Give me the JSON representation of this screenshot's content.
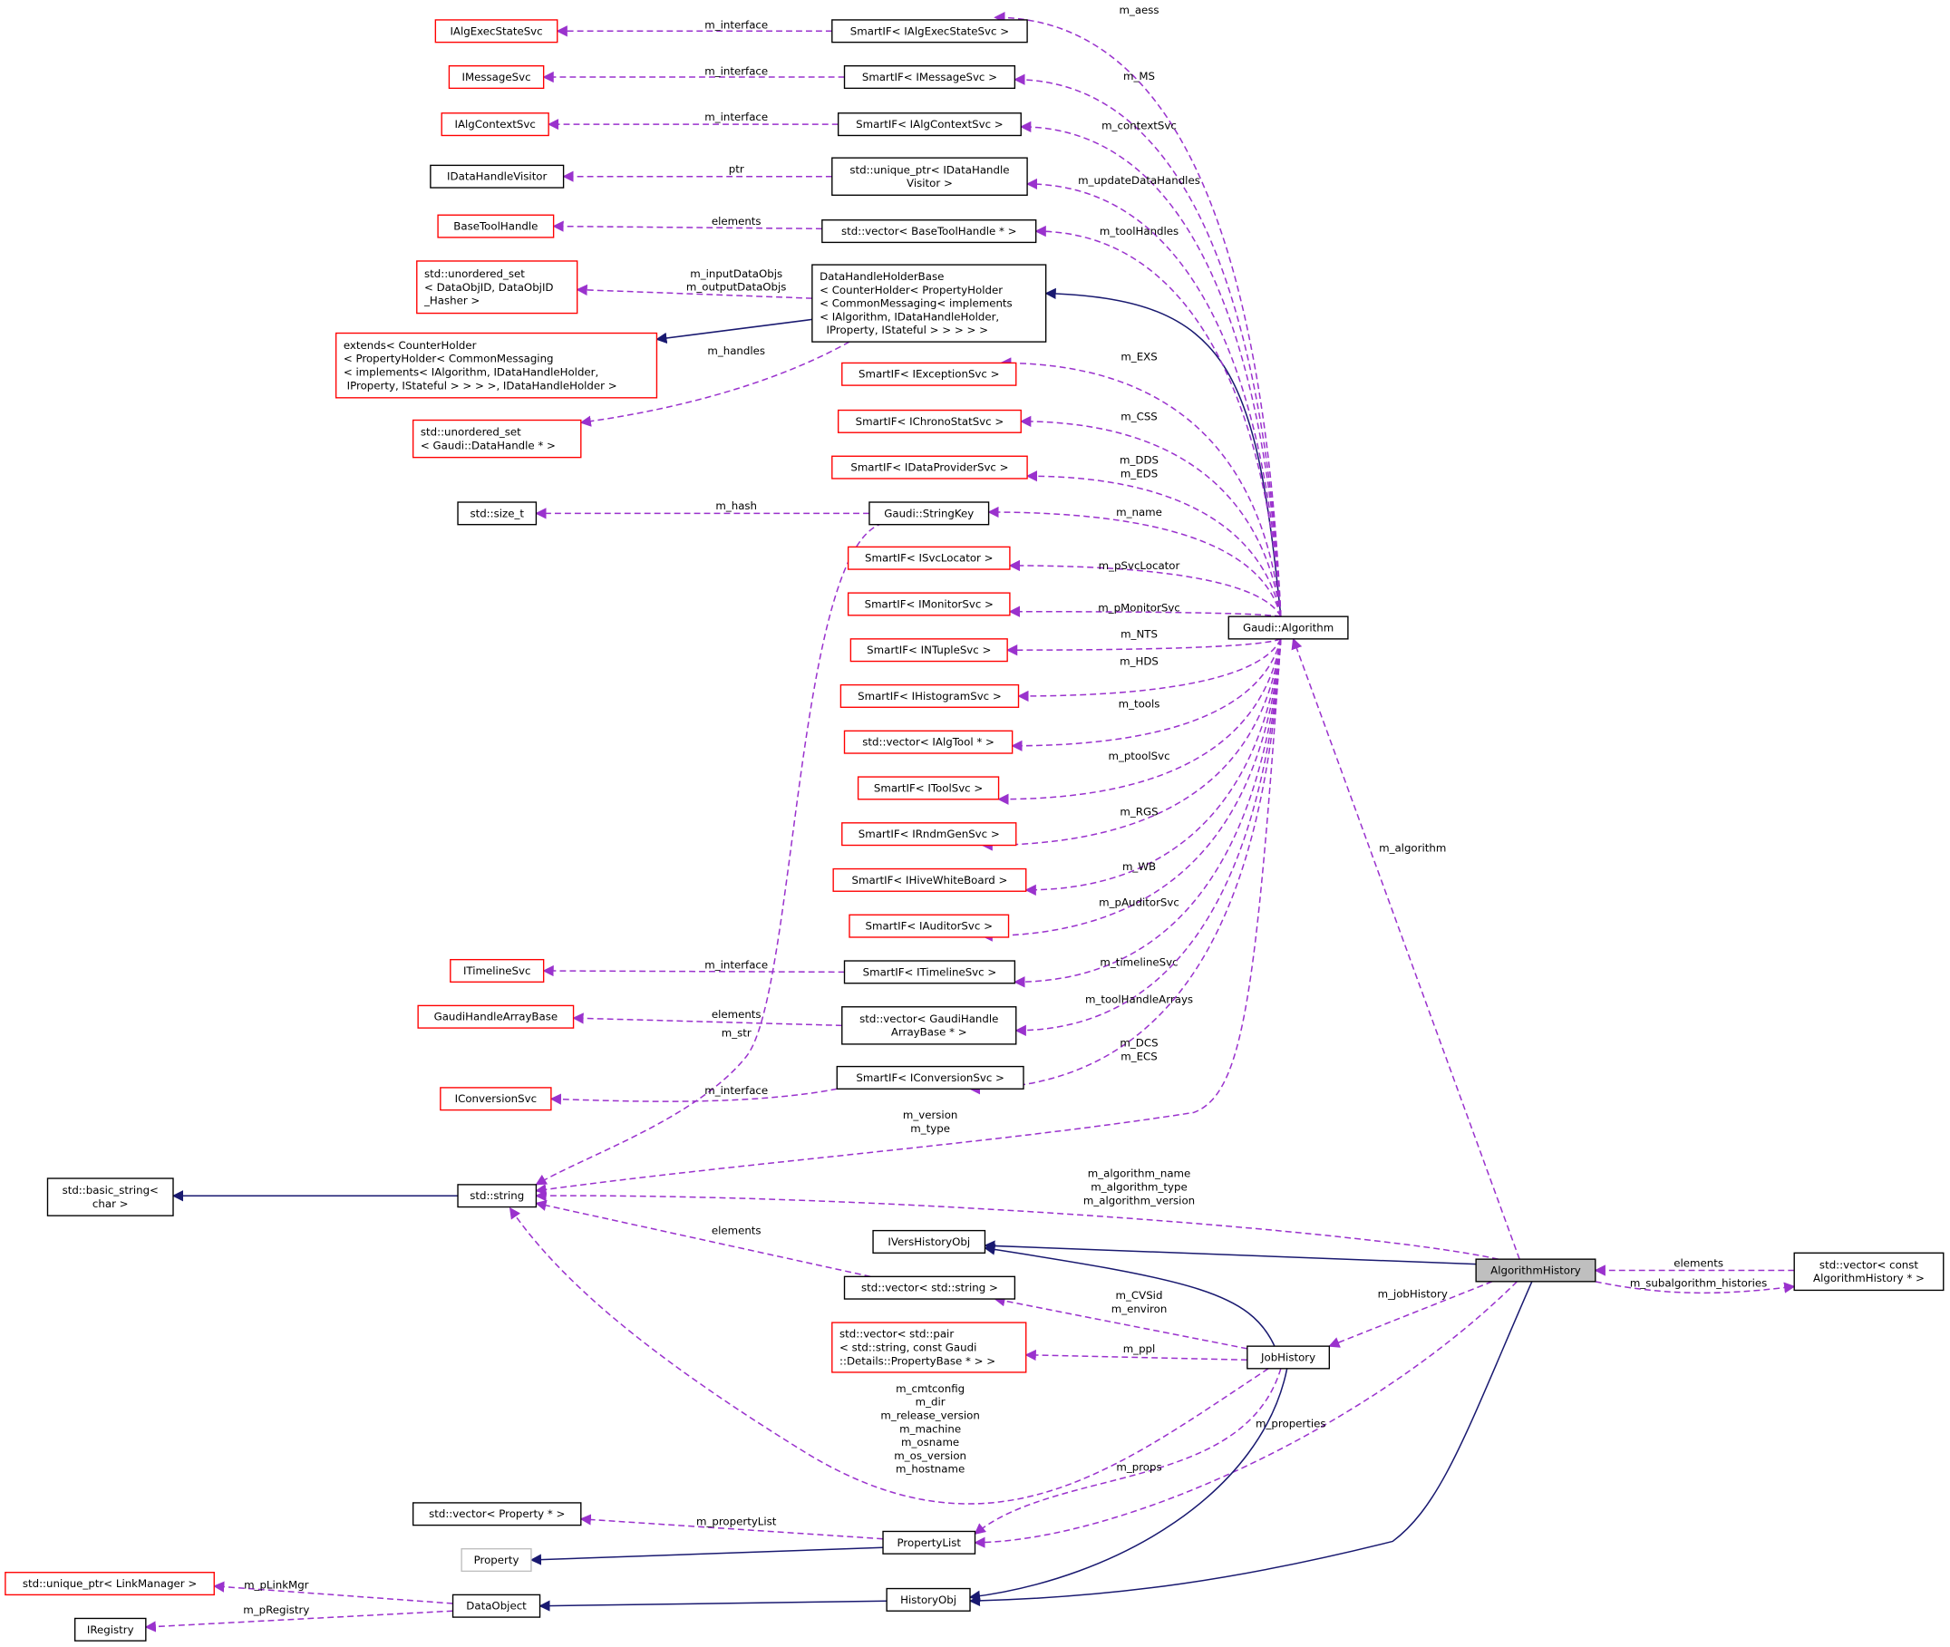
{
  "colors": {
    "usage_edge": "#9a32cd",
    "inheritance_edge": "#191970",
    "undocumented_border": "#ff0000",
    "documented_border": "#000000",
    "external_border": "#bfbfbf",
    "focus_fill": "#bfbfbf"
  },
  "nodes": [
    {
      "id": "IAlgExecStateSvc",
      "lines": [
        "IAlgExecStateSvc"
      ],
      "kind": "red"
    },
    {
      "id": "IMessageSvc",
      "lines": [
        "IMessageSvc"
      ],
      "kind": "red"
    },
    {
      "id": "IAlgContextSvc",
      "lines": [
        "IAlgContextSvc"
      ],
      "kind": "red"
    },
    {
      "id": "IDataHandleVisitor",
      "lines": [
        "IDataHandleVisitor"
      ],
      "kind": "black"
    },
    {
      "id": "BaseToolHandle",
      "lines": [
        "BaseToolHandle"
      ],
      "kind": "red"
    },
    {
      "id": "uset_dataobjid",
      "lines": [
        "std::unordered_set",
        "< DataObjID, DataObjID",
        "_Hasher >"
      ],
      "kind": "red"
    },
    {
      "id": "extends",
      "lines": [
        "extends< CounterHolder",
        "< PropertyHolder< CommonMessaging",
        "< implements< IAlgorithm, IDataHandleHolder,",
        " IProperty, IStateful > > > >, IDataHandleHolder >"
      ],
      "kind": "red"
    },
    {
      "id": "uset_datahandle",
      "lines": [
        "std::unordered_set",
        "< Gaudi::DataHandle * >"
      ],
      "kind": "red"
    },
    {
      "id": "size_t",
      "lines": [
        "std::size_t"
      ],
      "kind": "black"
    },
    {
      "id": "basic_string",
      "lines": [
        "std::basic_string<",
        "char >"
      ],
      "kind": "black"
    },
    {
      "id": "string",
      "lines": [
        "std::string"
      ],
      "kind": "black"
    },
    {
      "id": "vec_property",
      "lines": [
        "std::vector< Property * >"
      ],
      "kind": "black"
    },
    {
      "id": "Property",
      "lines": [
        "Property"
      ],
      "kind": "gray"
    },
    {
      "id": "uptr_linkmgr",
      "lines": [
        "std::unique_ptr< LinkManager >"
      ],
      "kind": "red"
    },
    {
      "id": "DataObject",
      "lines": [
        "DataObject"
      ],
      "kind": "black"
    },
    {
      "id": "IRegistry",
      "lines": [
        "IRegistry"
      ],
      "kind": "black"
    },
    {
      "id": "IConversionSvc",
      "lines": [
        "IConversionSvc"
      ],
      "kind": "red"
    },
    {
      "id": "GaudiHandleArrayBase",
      "lines": [
        "GaudiHandleArrayBase"
      ],
      "kind": "red"
    },
    {
      "id": "ITimelineSvc",
      "lines": [
        "ITimelineSvc"
      ],
      "kind": "red"
    },
    {
      "id": "si_aess",
      "lines": [
        "SmartIF< IAlgExecStateSvc >"
      ],
      "kind": "black"
    },
    {
      "id": "si_ms",
      "lines": [
        "SmartIF< IMessageSvc >"
      ],
      "kind": "black"
    },
    {
      "id": "si_ctx",
      "lines": [
        "SmartIF< IAlgContextSvc >"
      ],
      "kind": "black"
    },
    {
      "id": "uptr_dhv",
      "lines": [
        "std::unique_ptr< IDataHandle",
        "Visitor >"
      ],
      "kind": "black"
    },
    {
      "id": "vec_bth",
      "lines": [
        "std::vector< BaseToolHandle * >"
      ],
      "kind": "black"
    },
    {
      "id": "dhhb",
      "lines": [
        "DataHandleHolderBase",
        "< CounterHolder< PropertyHolder",
        "< CommonMessaging< implements",
        "< IAlgorithm, IDataHandleHolder,",
        "  IProperty, IStateful > > > > >"
      ],
      "kind": "black"
    },
    {
      "id": "si_exs",
      "lines": [
        "SmartIF< IExceptionSvc >"
      ],
      "kind": "red"
    },
    {
      "id": "si_css",
      "lines": [
        "SmartIF< IChronoStatSvc >"
      ],
      "kind": "red"
    },
    {
      "id": "si_dps",
      "lines": [
        "SmartIF< IDataProviderSvc >"
      ],
      "kind": "red"
    },
    {
      "id": "stringkey",
      "lines": [
        "Gaudi::StringKey"
      ],
      "kind": "black"
    },
    {
      "id": "si_svcloc",
      "lines": [
        "SmartIF< ISvcLocator >"
      ],
      "kind": "red"
    },
    {
      "id": "si_mon",
      "lines": [
        "SmartIF< IMonitorSvc >"
      ],
      "kind": "red"
    },
    {
      "id": "si_nts",
      "lines": [
        "SmartIF< INTupleSvc >"
      ],
      "kind": "red"
    },
    {
      "id": "si_hds",
      "lines": [
        "SmartIF< IHistogramSvc >"
      ],
      "kind": "red"
    },
    {
      "id": "vec_algtool",
      "lines": [
        "std::vector< IAlgTool * >"
      ],
      "kind": "red"
    },
    {
      "id": "si_toolsvc",
      "lines": [
        "SmartIF< IToolSvc >"
      ],
      "kind": "red"
    },
    {
      "id": "si_rgs",
      "lines": [
        "SmartIF< IRndmGenSvc >"
      ],
      "kind": "red"
    },
    {
      "id": "si_wb",
      "lines": [
        "SmartIF< IHiveWhiteBoard >"
      ],
      "kind": "red"
    },
    {
      "id": "si_aud",
      "lines": [
        "SmartIF< IAuditorSvc >"
      ],
      "kind": "red"
    },
    {
      "id": "si_timeline",
      "lines": [
        "SmartIF< ITimelineSvc >"
      ],
      "kind": "black"
    },
    {
      "id": "vec_ghab",
      "lines": [
        "std::vector< GaudiHandle",
        "ArrayBase * >"
      ],
      "kind": "black"
    },
    {
      "id": "si_conv",
      "lines": [
        "SmartIF< IConversionSvc >"
      ],
      "kind": "black"
    },
    {
      "id": "IVersHistoryObj",
      "lines": [
        "IVersHistoryObj"
      ],
      "kind": "black"
    },
    {
      "id": "vec_string",
      "lines": [
        "std::vector< std::string >"
      ],
      "kind": "black"
    },
    {
      "id": "vec_pair",
      "lines": [
        "std::vector< std::pair",
        "< std::string, const Gaudi",
        "::Details::PropertyBase * > >"
      ],
      "kind": "red"
    },
    {
      "id": "PropertyList",
      "lines": [
        "PropertyList"
      ],
      "kind": "black"
    },
    {
      "id": "HistoryObj",
      "lines": [
        "HistoryObj"
      ],
      "kind": "black"
    },
    {
      "id": "Algorithm",
      "lines": [
        "Gaudi::Algorithm"
      ],
      "kind": "black"
    },
    {
      "id": "AlgorithmHistory",
      "lines": [
        "AlgorithmHistory"
      ],
      "kind": "focus"
    },
    {
      "id": "JobHistory",
      "lines": [
        "JobHistory"
      ],
      "kind": "black"
    },
    {
      "id": "vec_const_ah",
      "lines": [
        "std::vector< const",
        "AlgorithmHistory * >"
      ],
      "kind": "black"
    }
  ],
  "edges": [
    {
      "kind": "usage",
      "label": [
        "m_interface"
      ]
    },
    {
      "kind": "usage",
      "label": [
        "m_interface"
      ]
    },
    {
      "kind": "usage",
      "label": [
        "m_interface"
      ]
    },
    {
      "kind": "usage",
      "label": [
        "ptr"
      ]
    },
    {
      "kind": "usage",
      "label": [
        "elements"
      ]
    },
    {
      "kind": "usage",
      "label": [
        "m_inputDataObjs",
        "m_outputDataObjs"
      ]
    },
    {
      "kind": "usage",
      "label": [
        "m_handles"
      ]
    },
    {
      "kind": "inheritance",
      "label": []
    },
    {
      "kind": "inheritance",
      "label": []
    },
    {
      "kind": "usage",
      "label": [
        "m_hash"
      ]
    },
    {
      "kind": "usage",
      "label": [
        "m_str"
      ]
    },
    {
      "kind": "usage",
      "label": [
        "m_interface"
      ]
    },
    {
      "kind": "usage",
      "label": [
        "elements"
      ]
    },
    {
      "kind": "usage",
      "label": [
        "m_interface"
      ]
    },
    {
      "kind": "usage",
      "label": [
        "m_aess"
      ]
    },
    {
      "kind": "usage",
      "label": [
        "m_MS"
      ]
    },
    {
      "kind": "usage",
      "label": [
        "m_contextSvc"
      ]
    },
    {
      "kind": "usage",
      "label": [
        "m_updateDataHandles"
      ]
    },
    {
      "kind": "usage",
      "label": [
        "m_toolHandles"
      ]
    },
    {
      "kind": "usage",
      "label": [
        "m_EXS"
      ]
    },
    {
      "kind": "usage",
      "label": [
        "m_CSS"
      ]
    },
    {
      "kind": "usage",
      "label": [
        "m_DDS",
        "m_EDS"
      ]
    },
    {
      "kind": "usage",
      "label": [
        "m_name"
      ]
    },
    {
      "kind": "usage",
      "label": [
        "m_pSvcLocator"
      ]
    },
    {
      "kind": "usage",
      "label": [
        "m_pMonitorSvc"
      ]
    },
    {
      "kind": "usage",
      "label": [
        "m_NTS"
      ]
    },
    {
      "kind": "usage",
      "label": [
        "m_HDS"
      ]
    },
    {
      "kind": "usage",
      "label": [
        "m_tools"
      ]
    },
    {
      "kind": "usage",
      "label": [
        "m_ptoolSvc"
      ]
    },
    {
      "kind": "usage",
      "label": [
        "m_RGS"
      ]
    },
    {
      "kind": "usage",
      "label": [
        "m_WB"
      ]
    },
    {
      "kind": "usage",
      "label": [
        "m_pAuditorSvc"
      ]
    },
    {
      "kind": "usage",
      "label": [
        "m_timelineSvc"
      ]
    },
    {
      "kind": "usage",
      "label": [
        "m_toolHandleArrays"
      ]
    },
    {
      "kind": "usage",
      "label": [
        "m_DCS",
        "m_ECS"
      ]
    },
    {
      "kind": "usage",
      "label": [
        "m_version",
        "m_type"
      ]
    },
    {
      "kind": "usage",
      "label": [
        "m_algorithm"
      ]
    },
    {
      "kind": "usage",
      "label": [
        "m_algorithm_name",
        "m_algorithm_type",
        "m_algorithm_version"
      ]
    },
    {
      "kind": "inheritance",
      "label": []
    },
    {
      "kind": "inheritance",
      "label": []
    },
    {
      "kind": "usage",
      "label": [
        "elements"
      ]
    },
    {
      "kind": "usage",
      "label": [
        "m_CVSid",
        "m_environ"
      ]
    },
    {
      "kind": "usage",
      "label": [
        "m_ppl"
      ]
    },
    {
      "kind": "usage",
      "label": [
        "m_cmtconfig",
        "m_dir",
        "m_release_version",
        "m_machine",
        "m_osname",
        "m_os_version",
        "m_hostname"
      ]
    },
    {
      "kind": "usage",
      "label": [
        "m_props"
      ]
    },
    {
      "kind": "usage",
      "label": [
        "m_properties"
      ]
    },
    {
      "kind": "usage",
      "label": [
        "m_jobHistory"
      ]
    },
    {
      "kind": "inheritance",
      "label": []
    },
    {
      "kind": "inheritance",
      "label": []
    },
    {
      "kind": "usage",
      "label": [
        "elements"
      ]
    },
    {
      "kind": "usage",
      "label": [
        "m_subalgorithm_histories"
      ]
    },
    {
      "kind": "usage",
      "label": [
        "m_propertyList"
      ]
    },
    {
      "kind": "inheritance",
      "label": []
    },
    {
      "kind": "inheritance",
      "label": []
    },
    {
      "kind": "usage",
      "label": [
        "m_pLinkMgr"
      ]
    },
    {
      "kind": "usage",
      "label": [
        "m_pRegistry"
      ]
    },
    {
      "kind": "inheritance",
      "label": []
    }
  ]
}
